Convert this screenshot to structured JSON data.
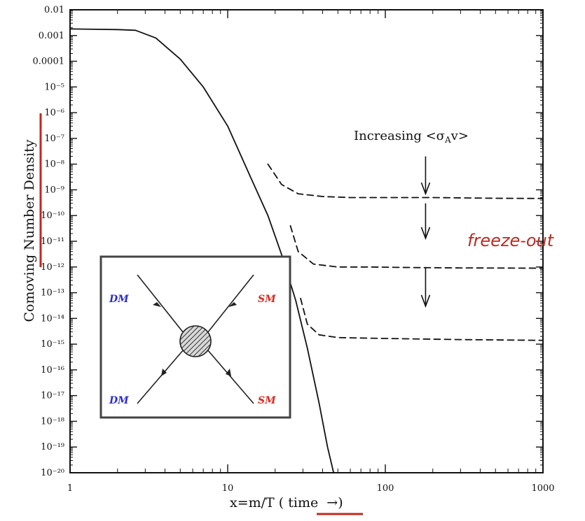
{
  "chart_data": {
    "type": "line",
    "xlabel": "x=m/T",
    "xlabel_time": "time",
    "xlabel_arrow": "→)",
    "ylabel": "Comoving Number Density",
    "x_scale": "log",
    "y_scale": "log",
    "xlim": [
      1,
      1000
    ],
    "ylim": [
      1e-20,
      0.01
    ],
    "x_ticks": [
      {
        "value": 1,
        "label": "1"
      },
      {
        "value": 10,
        "label": "10"
      },
      {
        "value": 100,
        "label": "100"
      },
      {
        "value": 1000,
        "label": "1000"
      }
    ],
    "y_ticks": [
      {
        "value": 0.01,
        "label": "0.01"
      },
      {
        "value": 0.001,
        "label": "0.001"
      },
      {
        "value": 0.0001,
        "label": "0.0001"
      },
      {
        "value": 1e-05,
        "label": "10⁻⁵"
      },
      {
        "value": 1e-06,
        "label": "10⁻⁶"
      },
      {
        "value": 1e-07,
        "label": "10⁻⁷"
      },
      {
        "value": 1e-08,
        "label": "10⁻⁸"
      },
      {
        "value": 1e-09,
        "label": "10⁻⁹"
      },
      {
        "value": 1e-10,
        "label": "10⁻¹⁰"
      },
      {
        "value": 1e-11,
        "label": "10⁻¹¹"
      },
      {
        "value": 1e-12,
        "label": "10⁻¹²"
      },
      {
        "value": 1e-13,
        "label": "10⁻¹³"
      },
      {
        "value": 1e-14,
        "label": "10⁻¹⁴"
      },
      {
        "value": 1e-15,
        "label": "10⁻¹⁵"
      },
      {
        "value": 1e-16,
        "label": "10⁻¹⁶"
      },
      {
        "value": 1e-17,
        "label": "10⁻¹⁷"
      },
      {
        "value": 1e-18,
        "label": "10⁻¹⁸"
      },
      {
        "value": 1e-19,
        "label": "10⁻¹⁹"
      },
      {
        "value": 1e-20,
        "label": "10⁻²⁰"
      }
    ],
    "series": [
      {
        "style": "solid",
        "x": [
          1,
          2,
          2.6,
          3.5,
          5,
          7,
          10,
          14,
          18,
          22,
          27,
          32,
          38,
          43,
          47
        ],
        "y": [
          0.0018,
          0.0017,
          0.0016,
          0.0008,
          0.00012,
          1e-05,
          3e-07,
          3e-09,
          1e-10,
          3e-12,
          5e-14,
          7e-16,
          5e-18,
          1e-19,
          1e-20
        ]
      },
      {
        "style": "dashed",
        "x": [
          18,
          22,
          28,
          40,
          60,
          100,
          200,
          500,
          1000
        ],
        "y": [
          1e-08,
          1.6e-09,
          7e-10,
          5.5e-10,
          5e-10,
          5e-10,
          5e-10,
          4.7e-10,
          4.6e-10
        ]
      },
      {
        "style": "dashed",
        "x": [
          25,
          28,
          35,
          50,
          80,
          150,
          300,
          1000
        ],
        "y": [
          4e-11,
          4e-12,
          1.3e-12,
          1e-12,
          1e-12,
          9.5e-13,
          9.2e-13,
          9e-13
        ]
      },
      {
        "style": "dashed",
        "x": [
          29,
          32,
          38,
          50,
          80,
          150,
          300,
          1000
        ],
        "y": [
          6e-14,
          6e-15,
          2.3e-15,
          1.8e-15,
          1.7e-15,
          1.6e-15,
          1.5e-15,
          1.4e-15
        ]
      }
    ],
    "arrows": [
      {
        "x": 180,
        "y_top": 2e-08,
        "y_bottom": 7e-10
      },
      {
        "x": 180,
        "y_top": 3e-10,
        "y_bottom": 1.3e-11
      },
      {
        "x": 180,
        "y_top": 1e-12,
        "y_bottom": 3e-14
      }
    ],
    "annotations": {
      "increasing": "Increasing <σ",
      "increasing_sub": "A",
      "increasing_end": "v>",
      "freeze_out": "freeze-out"
    },
    "inset": {
      "top_left": "DM",
      "bottom_left": "DM",
      "top_right": "SM",
      "bottom_right": "SM"
    },
    "colors": {
      "dm": "#2b2bd8",
      "sm": "#e0261e",
      "highlight": "#c0281e",
      "axis": "#111111"
    }
  }
}
